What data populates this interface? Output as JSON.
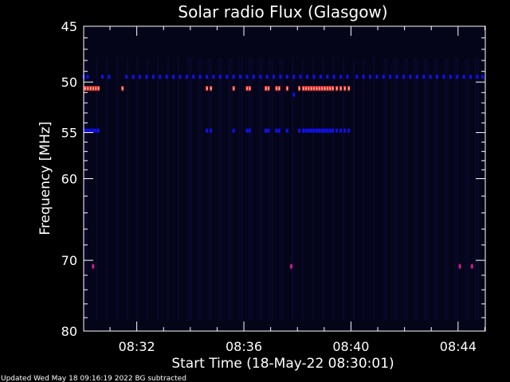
{
  "chart_data": {
    "type": "heatmap",
    "title": "Solar radio Flux (Glasgow)",
    "xlabel": "Start Time (18-May-22 08:30:01)",
    "ylabel": "Frequency [MHz]",
    "x_unit": "minutes after 08:30:01",
    "xlim": [
      0,
      15
    ],
    "ylim": [
      45,
      80
    ],
    "y_scale": "log",
    "x_ticks": [
      {
        "t": 1.983,
        "label": "08:32"
      },
      {
        "t": 5.983,
        "label": "08:36"
      },
      {
        "t": 9.983,
        "label": "08:40"
      },
      {
        "t": 13.983,
        "label": "08:44"
      }
    ],
    "y_ticks": [
      {
        "v": 45,
        "label": "45"
      },
      {
        "v": 50,
        "label": "50"
      },
      {
        "v": 55,
        "label": "55"
      },
      {
        "v": 60,
        "label": "60"
      },
      {
        "v": 70,
        "label": "70"
      },
      {
        "v": 80,
        "label": "80"
      }
    ],
    "colors": {
      "background": "#05051a",
      "low": "#1010ee",
      "mid": "#ff3040",
      "high": "#ffd080",
      "faint": "#0c0c3a",
      "purple": "#a010a0"
    },
    "bands": [
      {
        "freq": 49.5,
        "level": "low",
        "times": [
          0.0,
          0.15,
          0.7,
          0.95,
          1.6,
          1.85,
          2.1,
          2.35,
          2.6,
          2.85,
          3.1,
          3.35,
          3.6,
          3.85,
          4.1,
          4.35,
          4.6,
          4.85,
          5.1,
          5.35,
          5.6,
          5.85,
          6.1,
          6.35,
          6.6,
          6.85,
          7.1,
          7.35,
          7.6,
          7.85,
          8.1,
          8.35,
          8.6,
          8.85,
          9.1,
          9.35,
          9.6,
          9.85,
          10.2,
          10.45,
          10.7,
          10.95,
          11.2,
          11.45,
          11.7,
          11.95,
          12.2,
          12.45,
          12.7,
          12.95,
          13.2,
          13.45,
          13.7,
          13.95,
          14.2,
          14.45,
          14.7,
          14.9
        ]
      },
      {
        "freq": 50.6,
        "level": "mid",
        "times": [
          0.05,
          0.15,
          0.25,
          0.35,
          0.45,
          0.55,
          1.45,
          4.6,
          4.75,
          5.6,
          6.1,
          6.2,
          6.8,
          6.9,
          7.2,
          7.3,
          7.6,
          8.05,
          8.2,
          8.3,
          8.4,
          8.5,
          8.6,
          8.7,
          8.8,
          8.9,
          9.0,
          9.1,
          9.2,
          9.3,
          9.45,
          9.6,
          9.75,
          9.9
        ]
      },
      {
        "freq": 51.2,
        "level": "low",
        "times": [
          7.85
        ]
      },
      {
        "freq": 54.8,
        "level": "low",
        "times": [
          0.05,
          0.15,
          0.25,
          0.35,
          0.45,
          0.55,
          4.6,
          4.75,
          5.6,
          6.1,
          6.2,
          6.8,
          6.9,
          7.2,
          7.3,
          7.6,
          8.05,
          8.2,
          8.3,
          8.4,
          8.5,
          8.6,
          8.7,
          8.8,
          8.9,
          9.0,
          9.1,
          9.2,
          9.3,
          9.45,
          9.6,
          9.75,
          9.9
        ]
      },
      {
        "freq": 70.8,
        "level": "purple",
        "times": [
          0.35,
          7.75,
          14.05,
          14.5
        ]
      }
    ],
    "footer": "Updated Wed May 18 09:16:19 2022   BG subtracted"
  }
}
